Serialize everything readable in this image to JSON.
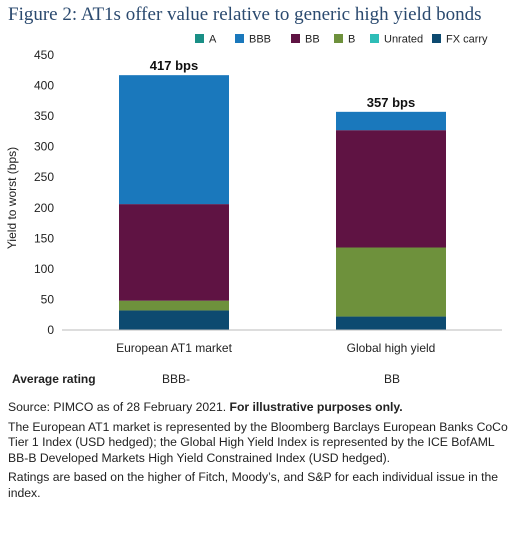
{
  "title": "Figure 2: AT1s offer value relative to generic high yield bonds",
  "chart_data": {
    "type": "bar",
    "stacked": true,
    "categories": [
      "European AT1 market",
      "Global high yield"
    ],
    "totals_labels": [
      "417 bps",
      "357 bps"
    ],
    "ylabel": "Yield to worst (bps)",
    "xlabel": "",
    "ylim": [
      0,
      450
    ],
    "yticks": [
      0,
      50,
      100,
      150,
      200,
      250,
      300,
      350,
      400,
      450
    ],
    "legend_position": "top",
    "series": [
      {
        "name": "A",
        "color": "#1a8f86",
        "values": [
          0,
          0
        ]
      },
      {
        "name": "BBB",
        "color": "#1a78bc",
        "values": [
          211,
          30
        ]
      },
      {
        "name": "BB",
        "color": "#5f1343",
        "values": [
          158,
          192
        ]
      },
      {
        "name": "B",
        "color": "#6e913c",
        "values": [
          16,
          113
        ]
      },
      {
        "name": "Unrated",
        "color": "#2ebdb7",
        "values": [
          0,
          0
        ]
      },
      {
        "name": "FX carry",
        "color": "#0d4a70",
        "values": [
          32,
          22
        ]
      }
    ]
  },
  "average_rating": {
    "label": "Average rating",
    "values": [
      "BBB-",
      "BB"
    ]
  },
  "notes": {
    "source_prefix": "Source: PIMCO as of 28 February 2021. ",
    "source_bold": "For illustrative purposes only.",
    "p2": "The European AT1 market is represented by the Bloomberg Barclays European Banks CoCo Tier 1 Index (USD hedged); the Global High Yield Index is represented by the ICE BofAML BB-B Developed Markets High Yield Constrained Index (USD hedged).",
    "p3": "Ratings are based on the higher of Fitch, Moody’s, and S&P for each individual issue in the index."
  }
}
